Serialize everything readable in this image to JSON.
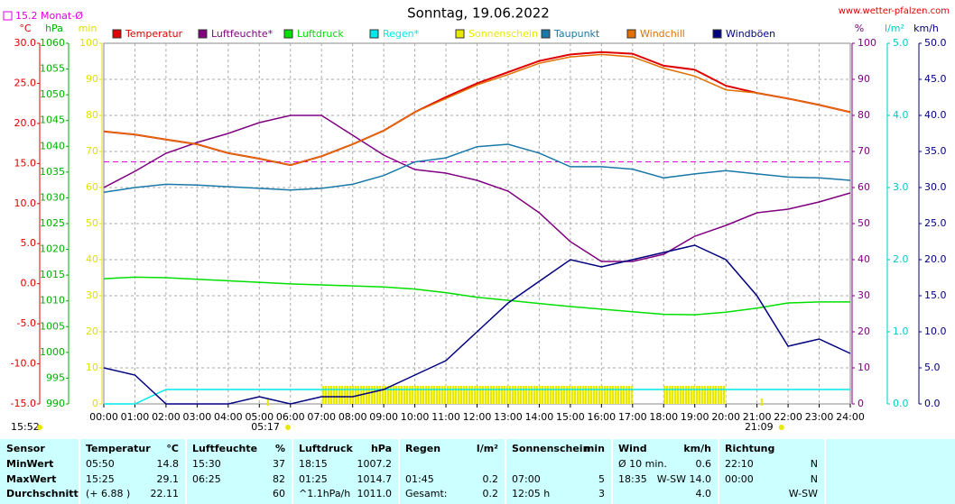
{
  "chart_data": {
    "type": "line",
    "title": "Sonntag, 19.06.2022",
    "source": "www.wetter-pfalzen.com",
    "time": "15:52",
    "monthly_average": {
      "label": "15.2 Monat-Ø",
      "value": 15.2,
      "color": "#e000e0",
      "axis": "°C"
    },
    "annotations": [
      {
        "text": "05:17",
        "x": 5.2833
      },
      {
        "text": "21:09",
        "x": 21.15
      }
    ],
    "grid": true,
    "xlim": [
      0,
      24
    ],
    "xticks": [
      {
        "value": 0,
        "label": "00:00"
      },
      {
        "value": 1,
        "label": "01:00"
      },
      {
        "value": 2,
        "label": "02:00"
      },
      {
        "value": 3,
        "label": "03:00"
      },
      {
        "value": 4,
        "label": "04:00"
      },
      {
        "value": 5,
        "label": "05:00"
      },
      {
        "value": 6,
        "label": "06:00"
      },
      {
        "value": 7,
        "label": "07:00"
      },
      {
        "value": 8,
        "label": "08:00"
      },
      {
        "value": 9,
        "label": "09:00"
      },
      {
        "value": 10,
        "label": "10:00"
      },
      {
        "value": 11,
        "label": "11:00"
      },
      {
        "value": 12,
        "label": "12:00"
      },
      {
        "value": 13,
        "label": "13:00"
      },
      {
        "value": 14,
        "label": "14:00"
      },
      {
        "value": 15,
        "label": "15:00"
      },
      {
        "value": 16,
        "label": "16:00"
      },
      {
        "value": 17,
        "label": "17:00"
      },
      {
        "value": 18,
        "label": "18:00"
      },
      {
        "value": 19,
        "label": "19:00"
      },
      {
        "value": 20,
        "label": "20:00"
      },
      {
        "value": 21,
        "label": "21:00"
      },
      {
        "value": 22,
        "label": "22:00"
      },
      {
        "value": 23,
        "label": "23:00"
      },
      {
        "value": 24,
        "label": "24:00"
      }
    ],
    "x": [
      0,
      1,
      2,
      3,
      4,
      5,
      6,
      7,
      8,
      9,
      10,
      11,
      12,
      13,
      14,
      15,
      16,
      17,
      18,
      19,
      20,
      21,
      22,
      23,
      24
    ],
    "axes": [
      {
        "label": "°C",
        "side": "left",
        "color": "#e00000",
        "lim": [
          -15,
          30
        ],
        "ticks": [
          {
            "value": 30,
            "label": "30.0"
          },
          {
            "value": 25,
            "label": "25.0"
          },
          {
            "value": 20,
            "label": "20.0"
          },
          {
            "value": 15,
            "label": "15.0"
          },
          {
            "value": 10,
            "label": "10.0"
          },
          {
            "value": 5,
            "label": "5.0"
          },
          {
            "value": 0,
            "label": "0.0"
          },
          {
            "value": -5,
            "label": "-5.0"
          },
          {
            "value": -10,
            "label": "-10.0"
          },
          {
            "value": -15,
            "label": "-15.0"
          }
        ]
      },
      {
        "label": "hPa",
        "side": "left",
        "color": "#00b000",
        "lim": [
          990,
          1060
        ],
        "ticks": [
          1060,
          1055,
          1050,
          1045,
          1040,
          1035,
          1030,
          1025,
          1020,
          1015,
          1010,
          1005,
          1000,
          995,
          990
        ]
      },
      {
        "label": "min",
        "side": "left",
        "color": "#e0e000",
        "lim": [
          0,
          100
        ],
        "ticks": [
          100,
          90,
          80,
          70,
          60,
          50,
          40,
          30,
          20,
          10,
          0
        ]
      },
      {
        "label": "%",
        "side": "right",
        "color": "#800080",
        "lim": [
          0,
          100
        ],
        "ticks": [
          100,
          90,
          80,
          70,
          60,
          50,
          40,
          30,
          20,
          10,
          0
        ]
      },
      {
        "label": "l/m²",
        "side": "right",
        "color": "#00c8c8",
        "lim": [
          0,
          5
        ],
        "ticks": [
          {
            "value": 5,
            "label": "5.0"
          },
          {
            "value": 4,
            "label": "4.0"
          },
          {
            "value": 3,
            "label": "3.0"
          },
          {
            "value": 2,
            "label": "2.0"
          },
          {
            "value": 1,
            "label": "1.0"
          },
          {
            "value": 0,
            "label": "0.0"
          }
        ]
      },
      {
        "label": "km/h",
        "side": "right",
        "color": "#000080",
        "lim": [
          0,
          50
        ],
        "ticks": [
          {
            "value": 50,
            "label": "50.0"
          },
          {
            "value": 45,
            "label": "45.0"
          },
          {
            "value": 40,
            "label": "40.0"
          },
          {
            "value": 35,
            "label": "35.0"
          },
          {
            "value": 30,
            "label": "30.0"
          },
          {
            "value": 25,
            "label": "25.0"
          },
          {
            "value": 20,
            "label": "20.0"
          },
          {
            "value": 15,
            "label": "15.0"
          },
          {
            "value": 10,
            "label": "10.0"
          },
          {
            "value": 5,
            "label": "5.0"
          },
          {
            "value": 0,
            "label": "0.0"
          }
        ]
      }
    ],
    "series": [
      {
        "name": "Temperatur",
        "color": "#e00000",
        "axis": "°C",
        "type": "line",
        "values": [
          19.0,
          18.6,
          18.0,
          17.4,
          16.3,
          15.6,
          14.8,
          15.9,
          17.4,
          19.1,
          21.4,
          23.3,
          25.0,
          26.4,
          27.8,
          28.6,
          28.9,
          28.7,
          27.2,
          26.7,
          24.7,
          23.8,
          23.1,
          22.3,
          21.4
        ]
      },
      {
        "name": "Luftfeuchte*",
        "color": "#800080",
        "axis": "%",
        "type": "line",
        "values": [
          60,
          64.5,
          69.5,
          72.5,
          75,
          78,
          80,
          80,
          74.5,
          69,
          65,
          64,
          62,
          59,
          53,
          45,
          39.5,
          39.5,
          41.5,
          46.5,
          49.5,
          53,
          54,
          56,
          58.5
        ]
      },
      {
        "name": "Luftdruck",
        "color": "#00e000",
        "axis": "hPa",
        "type": "line",
        "values": [
          1014.3,
          1014.6,
          1014.5,
          1014.2,
          1013.9,
          1013.6,
          1013.3,
          1013.1,
          1012.9,
          1012.7,
          1012.3,
          1011.6,
          1010.7,
          1010.1,
          1009.5,
          1008.9,
          1008.4,
          1007.9,
          1007.4,
          1007.3,
          1007.8,
          1008.6,
          1009.6,
          1009.8,
          1009.8
        ]
      },
      {
        "name": "Regen*",
        "color": "#00e8e8",
        "axis": "l/m²",
        "type": "line",
        "values": [
          0,
          0,
          0.2,
          0.2,
          0.2,
          0.2,
          0.2,
          0.2,
          0.2,
          0.2,
          0.2,
          0.2,
          0.2,
          0.2,
          0.2,
          0.2,
          0.2,
          0.2,
          0.2,
          0.2,
          0.2,
          0.2,
          0.2,
          0.2,
          0.2
        ]
      },
      {
        "name": "Sonnenschein",
        "color": "#e8e800",
        "axis": "min",
        "type": "bar",
        "values": [
          0,
          0,
          0,
          0,
          0,
          0,
          0,
          5,
          5,
          5,
          5,
          5,
          5,
          5,
          5,
          5,
          5,
          0,
          5,
          5,
          0,
          0,
          0,
          0,
          0
        ]
      },
      {
        "name": "Taupunkt",
        "color": "#1878a8",
        "axis": "°C",
        "type": "line",
        "values": [
          11.4,
          12.0,
          12.4,
          12.3,
          12.1,
          11.9,
          11.7,
          11.9,
          12.4,
          13.5,
          15.2,
          15.7,
          17.1,
          17.4,
          16.3,
          14.6,
          14.6,
          14.3,
          13.2,
          13.7,
          14.1,
          13.7,
          13.3,
          13.2,
          12.9
        ]
      },
      {
        "name": "Windchill",
        "color": "#e07000",
        "axis": "°C",
        "type": "line",
        "values": [
          19.0,
          18.6,
          18.0,
          17.4,
          16.3,
          15.6,
          14.8,
          15.9,
          17.4,
          19.1,
          21.4,
          23.1,
          24.8,
          26.1,
          27.5,
          28.3,
          28.6,
          28.3,
          26.9,
          25.9,
          24.2,
          23.8,
          23.1,
          22.3,
          21.4
        ]
      },
      {
        "name": "Windböen",
        "color": "#000080",
        "axis": "km/h",
        "type": "line",
        "values": [
          5,
          4,
          0,
          0,
          0,
          1,
          0,
          1,
          1,
          2,
          4,
          6,
          10,
          14,
          17,
          20,
          19,
          20,
          21,
          22,
          20,
          15,
          8,
          9,
          7
        ]
      }
    ]
  },
  "table": {
    "header": [
      [
        "Sensor"
      ],
      [
        "Temperatur",
        "°C"
      ],
      [
        "Luftfeuchte",
        "%"
      ],
      [
        "Luftdruck",
        "hPa"
      ],
      [
        "Regen",
        "l/m²"
      ],
      [
        "Sonnenschein",
        "min"
      ],
      [
        "Wind",
        "km/h"
      ],
      [
        "Richtung"
      ]
    ],
    "rows": [
      [
        [
          "MinWert"
        ],
        [
          "05:50",
          "14.8"
        ],
        [
          "15:30",
          "37"
        ],
        [
          "18:15",
          "1007.2"
        ],
        [],
        [],
        [
          "Ø 10 min.",
          "0.6"
        ],
        [
          "22:10",
          "N"
        ]
      ],
      [
        [
          "MaxWert"
        ],
        [
          "15:25",
          "29.1"
        ],
        [
          "06:25",
          "82"
        ],
        [
          "01:25",
          "1014.7"
        ],
        [
          "01:45",
          "0.2"
        ],
        [
          "07:00",
          "5"
        ],
        [
          "18:35",
          "W-SW 14.0"
        ],
        [
          "00:00",
          "N"
        ]
      ],
      [
        [
          "Durchschnitt"
        ],
        [
          "(+ 6.88 )",
          "22.11"
        ],
        [
          null,
          "60"
        ],
        [
          "^1.1hPa/h",
          "1011.0"
        ],
        [
          "Gesamt:",
          "0.2"
        ],
        [
          "12:05 h",
          "3"
        ],
        [
          null,
          "4.0"
        ],
        [
          null,
          "W-SW"
        ]
      ]
    ]
  }
}
